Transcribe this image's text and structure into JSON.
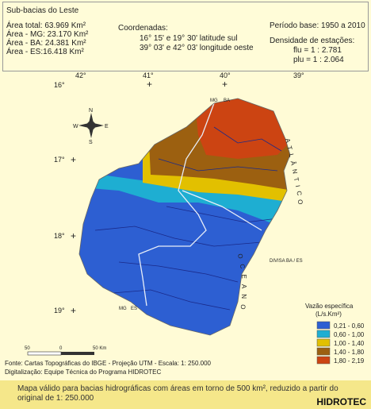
{
  "header": {
    "title": "Sub-bacias do Leste",
    "areas": [
      "Área total: 63.969 Km²",
      "Área - MG: 23.170 Km²",
      "Área - BA: 24.381 Km²",
      "Área - ES:16.418 Km²"
    ],
    "coordinates": {
      "label": "Coordenadas:",
      "lat": "16° 15' e 19° 30'  latitude sul",
      "lon": "39° 03' e 42° 03'  longitude oeste"
    },
    "period": "Período base:  1950  a  2010",
    "density": {
      "label": "Densidade de estações:",
      "flu": "flu  = 1 : 2.781",
      "plu": "plu = 1 : 2.064"
    }
  },
  "map": {
    "longitudes": [
      "42°",
      "41°",
      "40°",
      "39°"
    ],
    "latitudes": [
      "16°",
      "17°",
      "18°",
      "19°"
    ],
    "border_labels": {
      "mg_ba": [
        "MG",
        "BA"
      ],
      "ba_es": "DIVISA BA / ES",
      "mg_es": [
        "MG",
        "ES"
      ]
    },
    "ocean": [
      "OCEANO",
      "ATLÂNTICO"
    ],
    "compass": [
      "N",
      "S",
      "W",
      "E"
    ]
  },
  "legend": {
    "title": "Vazão específica",
    "unit": "(L/s.Km²)",
    "items": [
      {
        "label": "0,21 - 0,60",
        "color": "#2d5fd2"
      },
      {
        "label": "0,60 - 1,00",
        "color": "#1eaed2"
      },
      {
        "label": "1,00 - 1,40",
        "color": "#e2c000"
      },
      {
        "label": "1,40 - 1,80",
        "color": "#9c6010"
      },
      {
        "label": "1,80 - 2,19",
        "color": "#cc4412"
      }
    ]
  },
  "scale": [
    "50",
    "0",
    "50 Km"
  ],
  "footer": {
    "source": "Fonte: Cartas Topográficas do IBGE - Projeção UTM - Escala: 1: 250.000",
    "digitization": "Digitalização: Equipe Técnica do Programa HIDROTEC"
  },
  "banner": {
    "text": "Mapa válido para bacias hidrográficas com áreas em torno de 500 km², reduzido a partir do original de 1: 250.000",
    "brand": "HIDROTEC"
  }
}
